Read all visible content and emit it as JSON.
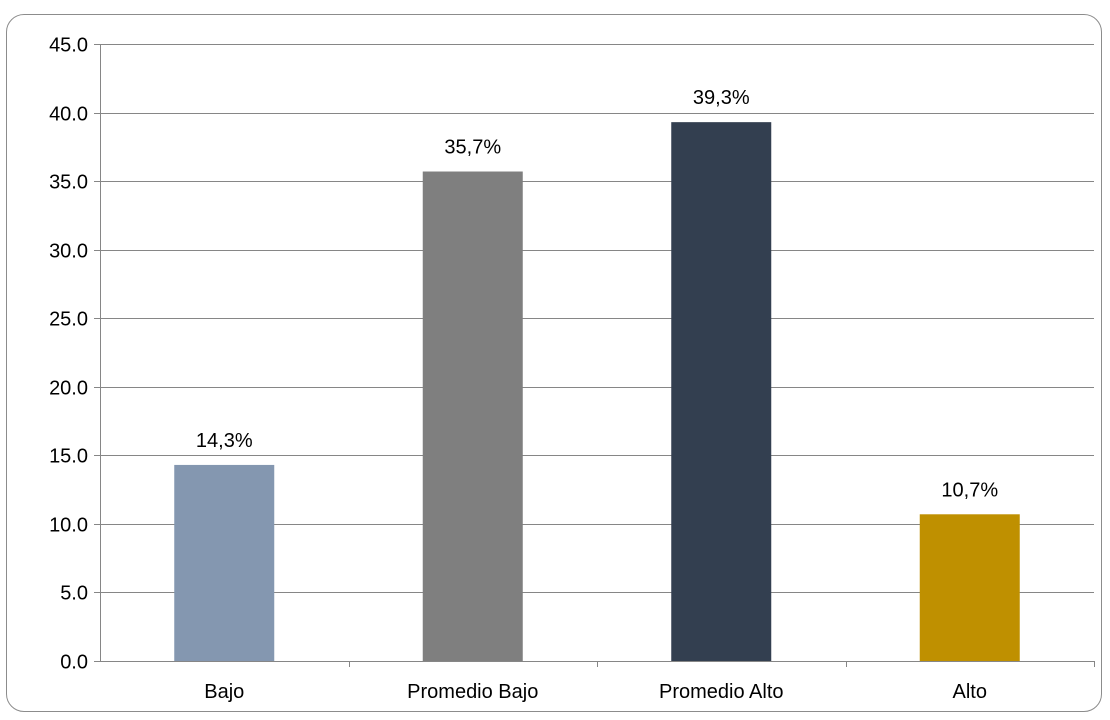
{
  "chart_data": {
    "type": "bar",
    "title": "",
    "xlabel": "",
    "ylabel": "",
    "ylim": [
      0,
      45
    ],
    "yticks": [
      "0.0",
      "5.0",
      "10.0",
      "15.0",
      "20.0",
      "25.0",
      "30.0",
      "35.0",
      "40.0",
      "45.0"
    ],
    "ytick_values": [
      0,
      5,
      10,
      15,
      20,
      25,
      30,
      35,
      40,
      45
    ],
    "categories": [
      "Bajo",
      "Promedio Bajo",
      "Promedio Alto",
      "Alto"
    ],
    "values": [
      14.3,
      35.7,
      39.3,
      10.7
    ],
    "data_labels": [
      "14,3%",
      "35,7%",
      "39,3%",
      "10,7%"
    ],
    "colors": [
      "#8497b0",
      "#7f7f7f",
      "#333f50",
      "#bf9000"
    ],
    "grid": true,
    "legend": "none"
  }
}
